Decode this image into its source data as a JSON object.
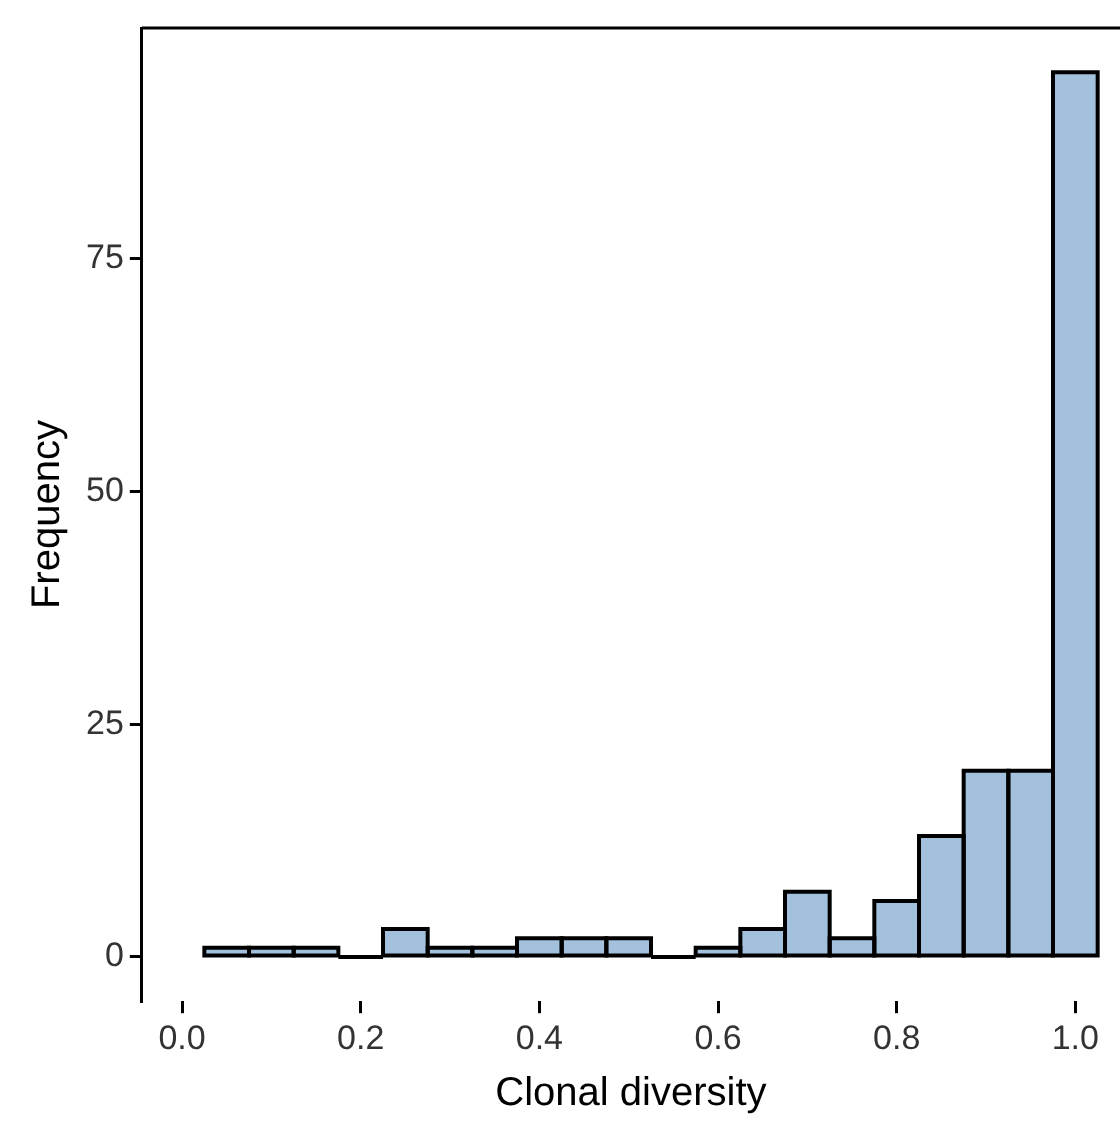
{
  "chart_data": {
    "type": "histogram",
    "xlabel": "Clonal diversity",
    "ylabel": "Frequency",
    "bins": [
      0.025,
      0.075,
      0.125,
      0.175,
      0.225,
      0.275,
      0.325,
      0.375,
      0.425,
      0.475,
      0.525,
      0.575,
      0.625,
      0.675,
      0.725,
      0.775,
      0.825,
      0.875,
      0.925,
      0.975,
      1.025
    ],
    "values": [
      1,
      1,
      1,
      0,
      3,
      1,
      1,
      2,
      2,
      2,
      0,
      1,
      3,
      7,
      2,
      6,
      13,
      20,
      20,
      95
    ],
    "color": "#a3c1dc",
    "xlim": [
      -0.045,
      1.05
    ],
    "xticks": [
      {
        "value": 0,
        "label": "0.0"
      },
      0.2,
      0.4,
      0.6,
      0.8,
      {
        "value": 1,
        "label": "1.0"
      }
    ],
    "ylim": [
      -4.75,
      99.75
    ],
    "yticks": [
      0,
      25,
      50,
      75
    ],
    "grid": false,
    "legend": false
  }
}
